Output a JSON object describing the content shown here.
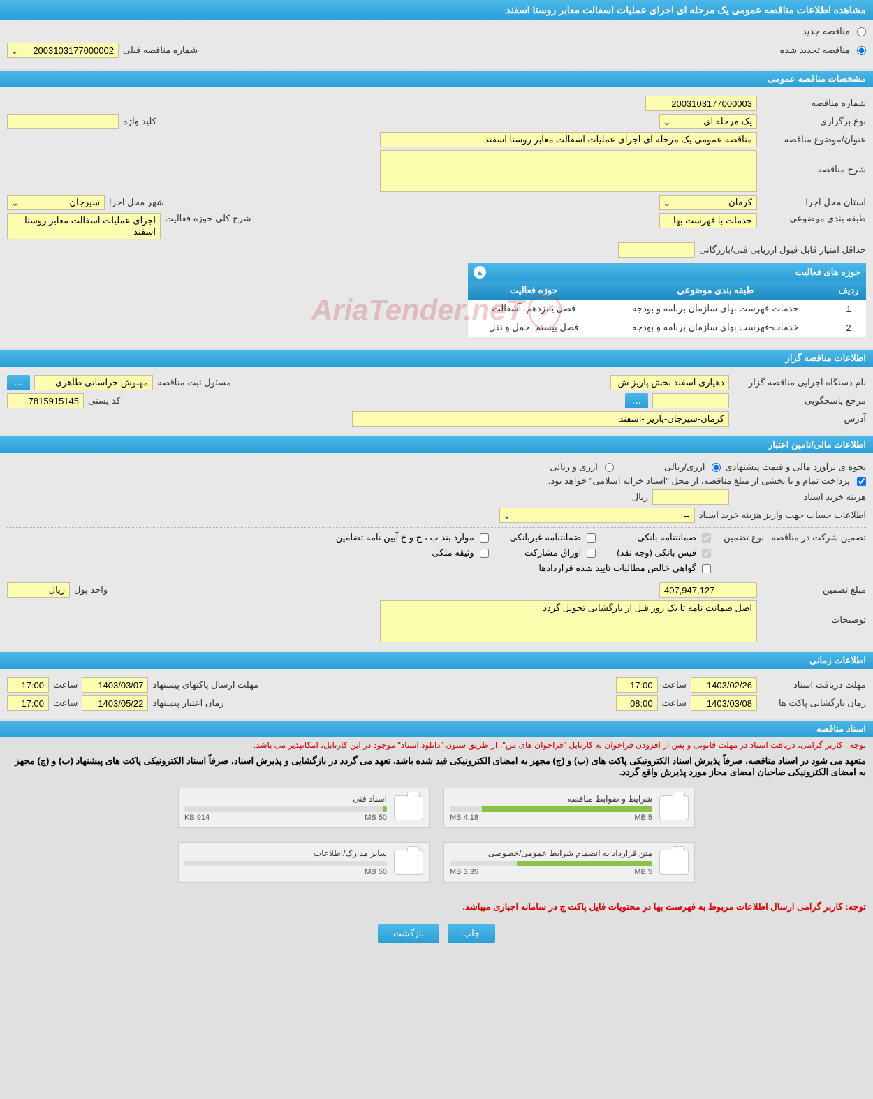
{
  "page_title": "مشاهده اطلاعات مناقصه عمومی یک مرحله ای اجرای عملیات اسفالت معابر روستا اسفند",
  "top": {
    "new_label": "مناقصه جدید",
    "renewed_label": "مناقصه تجدید شده",
    "prev_number_label": "شماره مناقصه قبلی",
    "prev_number_value": "2003103177000002"
  },
  "sections": {
    "general": "مشخصات مناقصه عمومی",
    "organizer": "اطلاعات مناقصه گزار",
    "financial": "اطلاعات مالی/تامین اعتبار",
    "timing": "اطلاعات زمانی",
    "documents": "اسناد مناقصه"
  },
  "general": {
    "number_label": "شماره مناقصه",
    "number_value": "2003103177000003",
    "type_label": "نوع برگزاری",
    "type_value": "یک مرحله ای",
    "keyword_label": "کلید واژه",
    "keyword_value": "",
    "subject_label": "عنوان/موضوع مناقصه",
    "subject_value": "مناقصه عمومی یک مرحله ای اجرای عملیات اسفالت معابر روستا اسفند",
    "desc_label": "شرح مناقصه",
    "desc_value": "",
    "province_label": "استان محل اجرا",
    "province_value": "کرمان",
    "city_label": "شهر محل اجرا",
    "city_value": "سیرجان",
    "category_label": "طبقه بندی موضوعی",
    "category_value": "خدمات با فهرست بها",
    "scope_label": "شرح کلی حوزه فعالیت",
    "scope_value": "اجرای عملیات اسفالت معابر روستا اسفند",
    "min_score_label": "حداقل امتیاز قابل قبول ارزیابی فنی/بازرگانی",
    "min_score_value": ""
  },
  "activity": {
    "panel_title": "حوزه های فعالیت",
    "col_row": "ردیف",
    "col_category": "طبقه بندی موضوعی",
    "col_scope": "حوزه فعالیت",
    "rows": [
      {
        "n": "1",
        "cat": "خدمات-فهرست بهای سازمان برنامه و بودجه",
        "scope": "فصل یانزدهم. آسفالت"
      },
      {
        "n": "2",
        "cat": "خدمات-فهرست بهای سازمان برنامه و بودجه",
        "scope": "فصل بیستم. حمل و نقل"
      }
    ]
  },
  "organizer": {
    "exec_label": "نام دستگاه اجرایی مناقصه گزار",
    "exec_value": "دهیاری اسفند بخش پاریز ش",
    "registrar_label": "مسئول ثبت مناقصه",
    "registrar_value": "مهنوش خراسانی طاهری",
    "responder_label": "مرجع پاسخگویی",
    "postal_label": "کد پستی",
    "postal_value": "7815915145",
    "address_label": "آدرس",
    "address_value": "کرمان-سیرجان-پاریز -اسفند"
  },
  "financial": {
    "estimate_label": "نحوه ی برآورد مالی و قیمت پیشنهادی",
    "opt_rial": "ارزی/ریالی",
    "opt_both": "ارزی و ریالی",
    "payment_note": "پرداخت تمام و یا بخشی از مبلغ مناقصه، از محل \"اسناد خزانه اسلامی\" خواهد بود.",
    "doc_cost_label": "هزینه خرید اسناد",
    "doc_cost_unit": "ریال",
    "doc_cost_value": "",
    "account_label": "اطلاعات حساب جهت واریز هزینه خرید اسناد",
    "account_value": "--",
    "guarantee_label": "تضمین شرکت در مناقصه:",
    "guarantee_type_label": "نوع تضمین",
    "chk_bank": "ضمانتنامه بانکی",
    "chk_nonbank": "ضمانتنامه غیربانکی",
    "chk_clauses": "موارد بند ب ، ج و خ آیین نامه تضامین",
    "chk_cash": "فیش بانکی (وجه نقد)",
    "chk_bonds": "اوراق مشارکت",
    "chk_property": "وثیقه ملکی",
    "chk_receivables": "گواهی خالص مطالبات تایید شده قراردادها",
    "amount_label": "مبلغ تضمین",
    "amount_value": "407,947,127",
    "currency_label": "واحد پول",
    "currency_value": "ریال",
    "notes_label": "توضیحات",
    "notes_value": "اصل ضمانت نامه تا یک روز قبل از بازگشایی تحویل گردد"
  },
  "timing": {
    "doc_receive_label": "مهلت دریافت اسناد",
    "doc_receive_date": "1403/02/26",
    "doc_receive_time": "17:00",
    "packet_send_label": "مهلت ارسال پاکتهای پیشنهاد",
    "packet_send_date": "1403/03/07",
    "packet_send_time": "17:00",
    "opening_label": "زمان بازگشایی پاکت ها",
    "opening_date": "1403/03/08",
    "opening_time": "08:00",
    "validity_label": "زمان اعتبار پیشنهاد",
    "validity_date": "1403/05/22",
    "validity_time": "17:00",
    "time_label": "ساعت"
  },
  "documents": {
    "note1": "توجه : کاربر گرامی، دریافت اسناد در مهلت قانونی و پس از افزودن فراخوان به کارتابل \"فراخوان های من\"، از طریق ستون \"دانلود اسناد\" موجود در این کارتابل، امکانپذیر می باشد.",
    "note2": "متعهد می شود در اسناد مناقصه، صرفاً پذیرش اسناد الکترونیکی پاکت های (ب) و (ج) مجهز به امضای الکترونیکی قید شده باشد. تعهد می گردد در بازگشایی و پذیرش اسناد، صرفاً اسناد الکترونیکی پاکت های پیشنهاد (ب) و (ج) مجهز به امضای الکترونیکی صاحبان امضای مجاز مورد پذیرش واقع گردد.",
    "note3": "توجه: کاربر گرامی ارسال اطلاعات مربوط به فهرست بها در محتویات فایل پاکت ج در سامانه اجباری میباشد.",
    "files": [
      {
        "title": "شرایط و ضوابط مناقصه",
        "used": "4.18 MB",
        "total": "5 MB",
        "pct": 84
      },
      {
        "title": "اسناد فنی",
        "used": "914 KB",
        "total": "50 MB",
        "pct": 2
      },
      {
        "title": "متن قرارداد به انضمام شرایط عمومی/خصوصی",
        "used": "3.35 MB",
        "total": "5 MB",
        "pct": 67
      },
      {
        "title": "سایر مدارک/اطلاعات",
        "used": "",
        "total": "50 MB",
        "pct": 0
      }
    ]
  },
  "buttons": {
    "print": "چاپ",
    "back": "بازگشت"
  },
  "colors": {
    "header_grad_top": "#4db8e8",
    "header_grad_bottom": "#2a9fd6",
    "field_bg": "#fdfdb0",
    "page_bg": "#e0e0e0",
    "progress_fill": "#8bc34a",
    "red_text": "#d00"
  }
}
